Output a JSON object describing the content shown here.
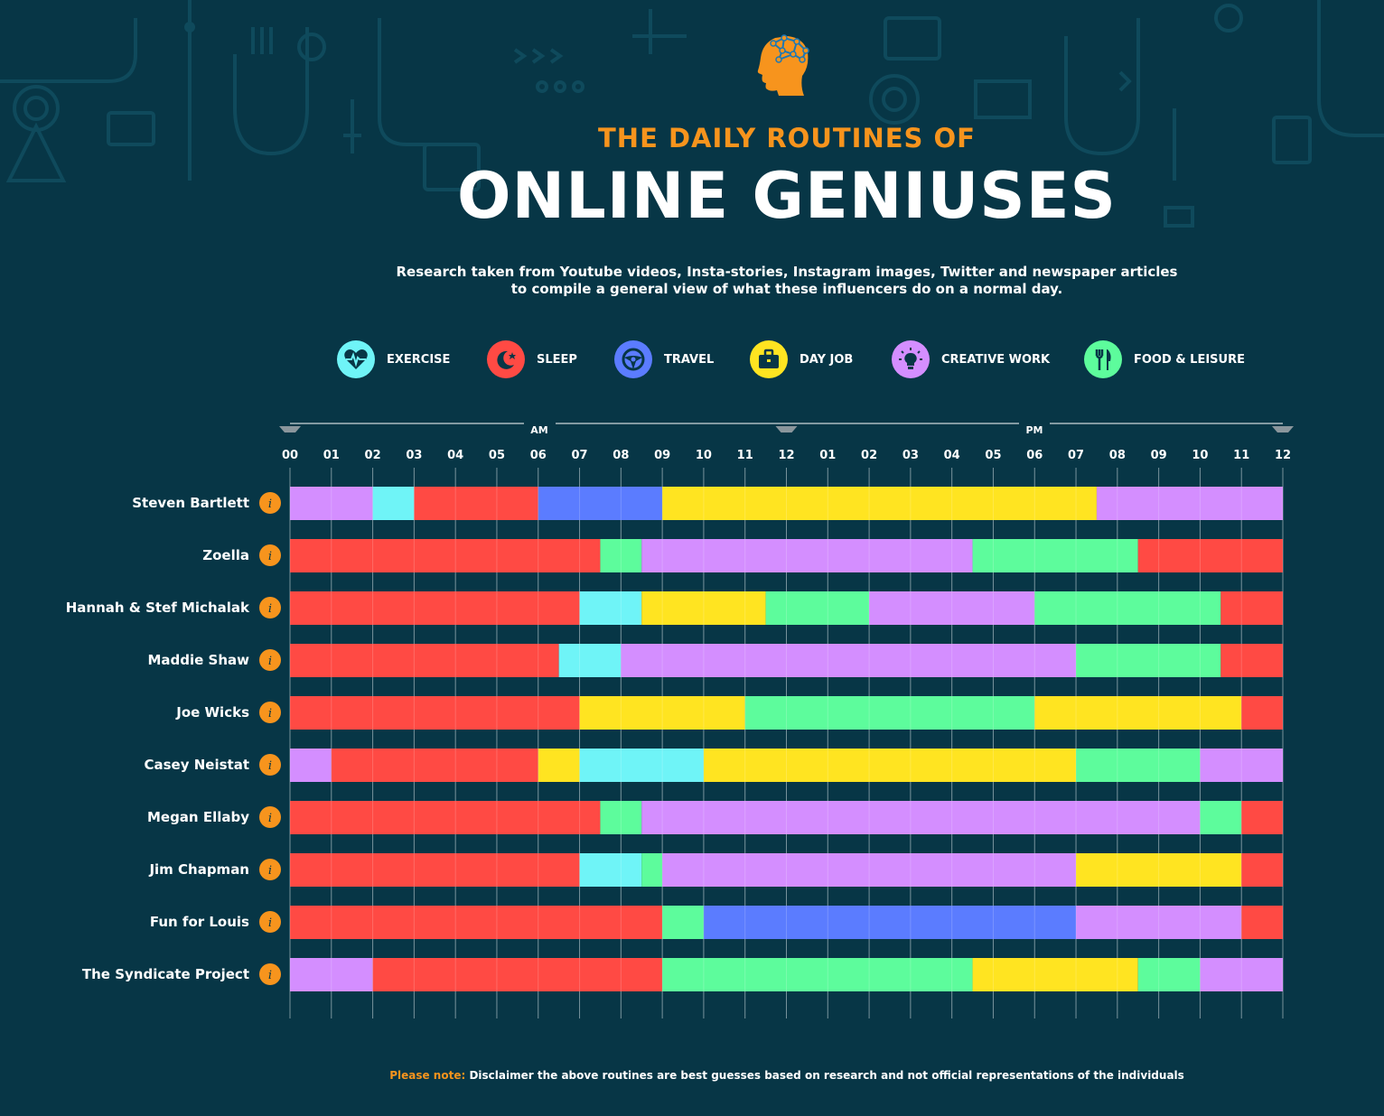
{
  "header": {
    "title_top": "THE DAILY ROUTINES OF",
    "title_main": "ONLINE GENIUSES",
    "subtitle_line1": "Research taken from Youtube videos, Insta-stories, Instagram images, Twitter and newspaper articles",
    "subtitle_line2": "to compile a general view of what these influencers do on a normal day."
  },
  "legend": [
    {
      "key": "exercise",
      "label": "EXERCISE",
      "color": "#6ff4f7",
      "icon": "heartbeat-icon"
    },
    {
      "key": "sleep",
      "label": "SLEEP",
      "color": "#ff4a44",
      "icon": "moon-stars-icon"
    },
    {
      "key": "travel",
      "label": "TRAVEL",
      "color": "#5b7cff",
      "icon": "steering-wheel-icon"
    },
    {
      "key": "dayjob",
      "label": "DAY JOB",
      "color": "#ffe421",
      "icon": "briefcase-icon"
    },
    {
      "key": "creative",
      "label": "CREATIVE WORK",
      "color": "#d48eff",
      "icon": "lightbulb-icon"
    },
    {
      "key": "food",
      "label": "FOOD & LEISURE",
      "color": "#5dfc9c",
      "icon": "fork-knife-icon"
    }
  ],
  "chart_data": {
    "type": "bar",
    "orientation": "horizontal-stacked-timeline",
    "x_unit": "hour of day",
    "xlim": [
      0,
      24
    ],
    "am_label": "AM",
    "pm_label": "PM",
    "tick_labels": [
      "00",
      "01",
      "02",
      "03",
      "04",
      "05",
      "06",
      "07",
      "08",
      "09",
      "10",
      "11",
      "12",
      "01",
      "02",
      "03",
      "04",
      "05",
      "06",
      "07",
      "08",
      "09",
      "10",
      "11",
      "12"
    ],
    "info_icon_label": "i",
    "rows": [
      {
        "name": "Steven Bartlett",
        "segments": [
          {
            "activity": "creative",
            "start": 0,
            "end": 2
          },
          {
            "activity": "exercise",
            "start": 2,
            "end": 3
          },
          {
            "activity": "sleep",
            "start": 3,
            "end": 6
          },
          {
            "activity": "travel",
            "start": 6,
            "end": 9
          },
          {
            "activity": "dayjob",
            "start": 9,
            "end": 19.5
          },
          {
            "activity": "creative",
            "start": 19.5,
            "end": 24
          }
        ]
      },
      {
        "name": "Zoella",
        "segments": [
          {
            "activity": "sleep",
            "start": 0,
            "end": 7.5
          },
          {
            "activity": "food",
            "start": 7.5,
            "end": 8.5
          },
          {
            "activity": "creative",
            "start": 8.5,
            "end": 16.5
          },
          {
            "activity": "food",
            "start": 16.5,
            "end": 20.5
          },
          {
            "activity": "sleep",
            "start": 20.5,
            "end": 24
          }
        ]
      },
      {
        "name": "Hannah & Stef Michalak",
        "segments": [
          {
            "activity": "sleep",
            "start": 0,
            "end": 7
          },
          {
            "activity": "exercise",
            "start": 7,
            "end": 8.5
          },
          {
            "activity": "dayjob",
            "start": 8.5,
            "end": 11.5
          },
          {
            "activity": "food",
            "start": 11.5,
            "end": 14
          },
          {
            "activity": "creative",
            "start": 14,
            "end": 18
          },
          {
            "activity": "food",
            "start": 18,
            "end": 22.5
          },
          {
            "activity": "sleep",
            "start": 22.5,
            "end": 24
          }
        ]
      },
      {
        "name": "Maddie Shaw",
        "segments": [
          {
            "activity": "sleep",
            "start": 0,
            "end": 6.5
          },
          {
            "activity": "exercise",
            "start": 6.5,
            "end": 8
          },
          {
            "activity": "creative",
            "start": 8,
            "end": 19
          },
          {
            "activity": "food",
            "start": 19,
            "end": 22.5
          },
          {
            "activity": "sleep",
            "start": 22.5,
            "end": 24
          }
        ]
      },
      {
        "name": "Joe Wicks",
        "segments": [
          {
            "activity": "sleep",
            "start": 0,
            "end": 7
          },
          {
            "activity": "dayjob",
            "start": 7,
            "end": 11
          },
          {
            "activity": "food",
            "start": 11,
            "end": 18
          },
          {
            "activity": "dayjob",
            "start": 18,
            "end": 23
          },
          {
            "activity": "sleep",
            "start": 23,
            "end": 24
          }
        ]
      },
      {
        "name": "Casey Neistat",
        "segments": [
          {
            "activity": "creative",
            "start": 0,
            "end": 1
          },
          {
            "activity": "sleep",
            "start": 1,
            "end": 6
          },
          {
            "activity": "dayjob",
            "start": 6,
            "end": 7
          },
          {
            "activity": "exercise",
            "start": 7,
            "end": 10
          },
          {
            "activity": "dayjob",
            "start": 10,
            "end": 19
          },
          {
            "activity": "food",
            "start": 19,
            "end": 22
          },
          {
            "activity": "creative",
            "start": 22,
            "end": 24
          }
        ]
      },
      {
        "name": "Megan Ellaby",
        "segments": [
          {
            "activity": "sleep",
            "start": 0,
            "end": 7.5
          },
          {
            "activity": "food",
            "start": 7.5,
            "end": 8.5
          },
          {
            "activity": "creative",
            "start": 8.5,
            "end": 22
          },
          {
            "activity": "food",
            "start": 22,
            "end": 23
          },
          {
            "activity": "sleep",
            "start": 23,
            "end": 24
          }
        ]
      },
      {
        "name": "Jim Chapman",
        "segments": [
          {
            "activity": "sleep",
            "start": 0,
            "end": 7
          },
          {
            "activity": "exercise",
            "start": 7,
            "end": 8.5
          },
          {
            "activity": "food",
            "start": 8.5,
            "end": 9
          },
          {
            "activity": "creative",
            "start": 9,
            "end": 19
          },
          {
            "activity": "dayjob",
            "start": 19,
            "end": 23
          },
          {
            "activity": "sleep",
            "start": 23,
            "end": 24
          }
        ]
      },
      {
        "name": "Fun for Louis",
        "segments": [
          {
            "activity": "sleep",
            "start": 0,
            "end": 9
          },
          {
            "activity": "food",
            "start": 9,
            "end": 10
          },
          {
            "activity": "travel",
            "start": 10,
            "end": 19
          },
          {
            "activity": "creative",
            "start": 19,
            "end": 23
          },
          {
            "activity": "sleep",
            "start": 23,
            "end": 24
          }
        ]
      },
      {
        "name": "The Syndicate Project",
        "segments": [
          {
            "activity": "creative",
            "start": 0,
            "end": 2
          },
          {
            "activity": "sleep",
            "start": 2,
            "end": 9
          },
          {
            "activity": "food",
            "start": 9,
            "end": 16.5
          },
          {
            "activity": "dayjob",
            "start": 16.5,
            "end": 20.5
          },
          {
            "activity": "food",
            "start": 20.5,
            "end": 22
          },
          {
            "activity": "creative",
            "start": 22,
            "end": 24
          }
        ]
      }
    ]
  },
  "footer": {
    "note_label": "Please note:",
    "note_text": "Disclaimer the above routines are best guesses based on research and not official representations of the individuals"
  }
}
